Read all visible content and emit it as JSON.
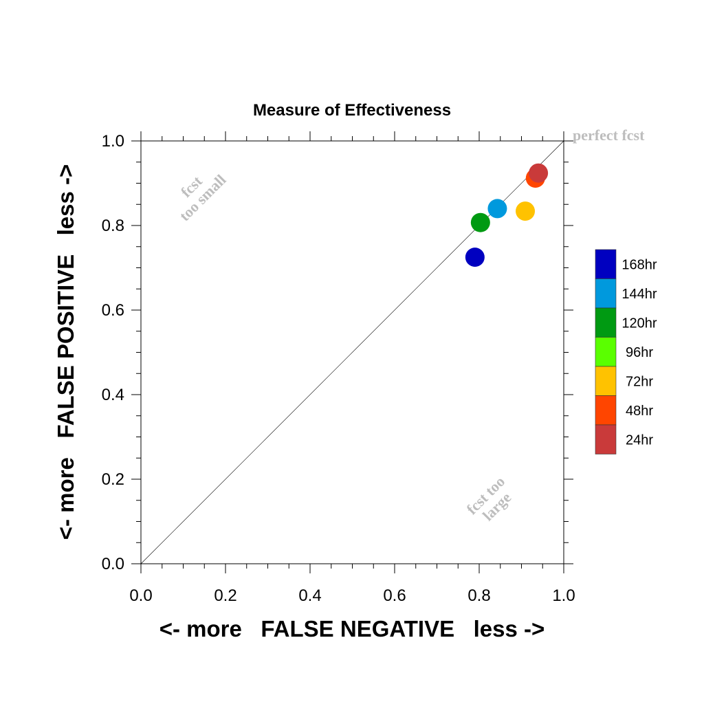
{
  "chart_data": {
    "type": "scatter",
    "title": "Measure of Effectiveness",
    "xlabel": "<- more   FALSE NEGATIVE   less ->",
    "ylabel": "<- more   FALSE POSITIVE   less ->",
    "xlim": [
      0,
      1
    ],
    "ylim": [
      0,
      1
    ],
    "xticks": [
      "0.0",
      "0.2",
      "0.4",
      "0.6",
      "0.8",
      "1.0"
    ],
    "yticks": [
      "0.0",
      "0.2",
      "0.4",
      "0.6",
      "0.8",
      "1.0"
    ],
    "grid": false,
    "diagonal": true,
    "legend_position": "right",
    "annotations": {
      "perfect": "perfect fcst",
      "too_small_line1": "fcst",
      "too_small_line2": "too small",
      "too_large_line1": "fcst too",
      "too_large_line2": "large"
    },
    "series": [
      {
        "name": "168hr",
        "color": "#0000c0",
        "x": 0.79,
        "y": 0.725
      },
      {
        "name": "144hr",
        "color": "#0099dd",
        "x": 0.843,
        "y": 0.84
      },
      {
        "name": "120hr",
        "color": "#009a12",
        "x": 0.803,
        "y": 0.807
      },
      {
        "name": "96hr",
        "color": "#5aff00",
        "x": null,
        "y": null
      },
      {
        "name": "72hr",
        "color": "#ffc200",
        "x": 0.909,
        "y": 0.834
      },
      {
        "name": "48hr",
        "color": "#ff4500",
        "x": 0.933,
        "y": 0.912
      },
      {
        "name": "24hr",
        "color": "#c93a3a",
        "x": 0.94,
        "y": 0.924
      }
    ]
  }
}
